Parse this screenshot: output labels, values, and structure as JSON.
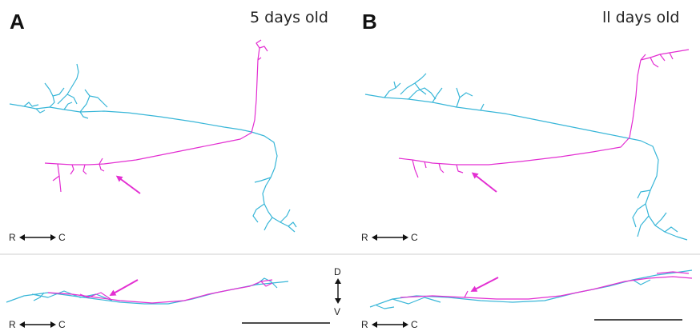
{
  "panels": [
    {
      "letter": "A",
      "age": "5 days old"
    },
    {
      "letter": "B",
      "age": "ll days old"
    }
  ],
  "orientation": {
    "rostral": "R",
    "caudal": "C",
    "dorsal": "D",
    "ventral": "V"
  },
  "colors": {
    "neuron_blue": "#38b6d8",
    "neuron_magenta": "#e32fd2",
    "arrow": "#e32fd2",
    "divider": "#cfcfcf",
    "scale_bar": "#111111"
  }
}
